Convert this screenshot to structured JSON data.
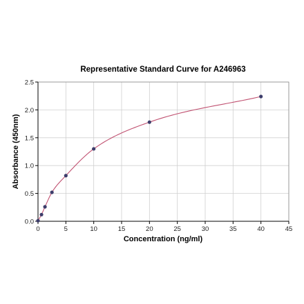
{
  "chart_data": {
    "type": "scatter",
    "title": "Representative Standard Curve for A246963",
    "xlabel": "Concentration (ng/ml)",
    "ylabel": "Absorbance (450nm)",
    "xlim": [
      0,
      45
    ],
    "ylim": [
      0,
      2.5
    ],
    "xticks": [
      "0",
      "5",
      "10",
      "15",
      "20",
      "25",
      "30",
      "35",
      "40",
      "45"
    ],
    "yticks": [
      "0.0",
      "0.5",
      "1.0",
      "1.5",
      "2.0",
      "2.5"
    ],
    "grid": true,
    "series": [
      {
        "x": [
          0,
          0.625,
          1.25,
          2.5,
          5,
          10,
          20,
          40
        ],
        "y": [
          0.01,
          0.12,
          0.26,
          0.52,
          0.82,
          1.3,
          1.78,
          2.24
        ]
      }
    ],
    "fit_curve": true,
    "colors": {
      "curve": "#c05070",
      "points": "#3d3d6b",
      "grid": "#d0d0d0",
      "axis": "#000000"
    }
  }
}
